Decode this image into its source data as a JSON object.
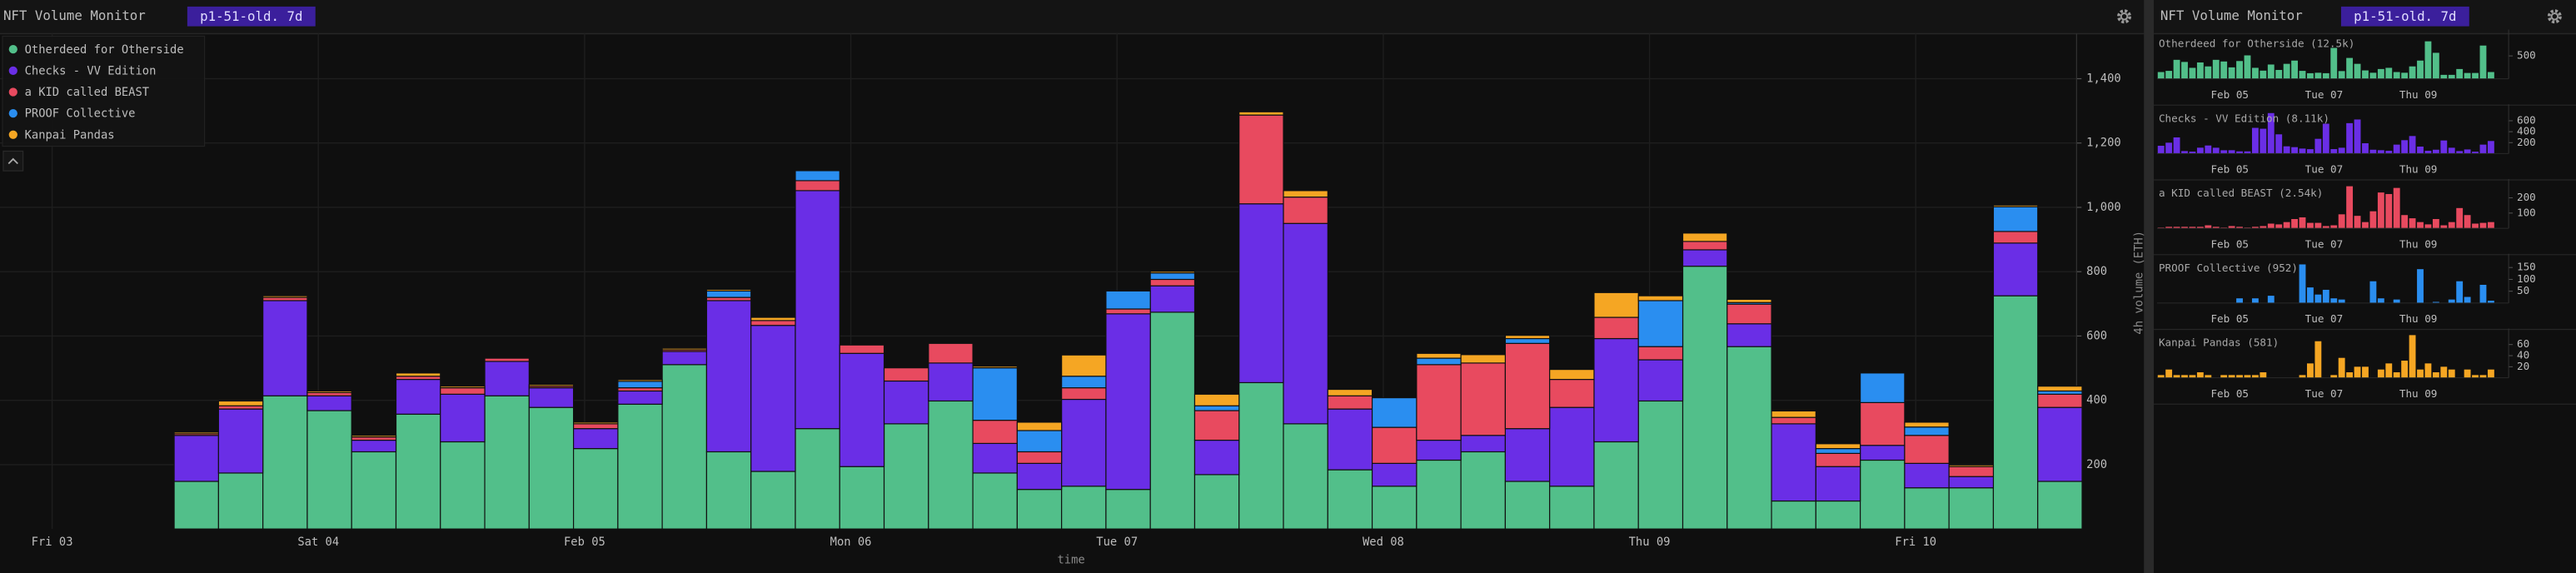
{
  "chart_data": {
    "type": "bar",
    "stacked": true,
    "title": "NFT Volume Monitor",
    "badge": "p1-51-old. 7d",
    "xlabel": "time",
    "ylabel": "4h volume (ETH)",
    "grid": true,
    "legend": "upper left",
    "x": [
      13,
      17,
      21,
      25,
      29,
      33,
      37,
      41,
      45,
      49,
      53,
      57,
      61,
      65,
      69,
      73,
      77,
      81,
      85,
      89,
      93,
      97,
      101,
      105,
      109,
      113,
      117,
      121,
      125,
      129,
      133,
      137,
      141,
      145,
      149,
      153,
      157,
      161,
      165,
      169,
      173,
      177,
      181
    ],
    "xlim": [
      -4.7,
      182.5
    ],
    "xticks": [
      {
        "value": 0,
        "label": "Fri 03"
      },
      {
        "value": 24,
        "label": "Sat 04"
      },
      {
        "value": 48,
        "label": "Feb 05"
      },
      {
        "value": 72,
        "label": "Mon 06"
      },
      {
        "value": 96,
        "label": "Tue 07"
      },
      {
        "value": 120,
        "label": "Wed 08"
      },
      {
        "value": 144,
        "label": "Thu 09"
      },
      {
        "value": 168,
        "label": "Fri 10"
      }
    ],
    "ylim": [
      0,
      1540
    ],
    "yticks": [
      200,
      400,
      600,
      800,
      {
        "value": 1000,
        "label": "1,000"
      },
      {
        "value": 1200,
        "label": "1,200"
      },
      {
        "value": 1400,
        "label": "1,400"
      }
    ],
    "panel_xlim": [
      11,
      190
    ],
    "panel_xticks": [
      {
        "value": 48,
        "label": "Feb 05"
      },
      {
        "value": 96,
        "label": "Tue 07"
      },
      {
        "value": 144,
        "label": "Thu 09"
      }
    ],
    "series": [
      {
        "name": "Otherdeed for Otherside",
        "color": "#52bf8a",
        "values": [
          148,
          174,
          414,
          368,
          240,
          357,
          271,
          414,
          378,
          250,
          388,
          511,
          240,
          179,
          312,
          194,
          327,
          398,
          174,
          123,
          133,
          123,
          674,
          169,
          455,
          327,
          184,
          133,
          214,
          240,
          148,
          133,
          271,
          398,
          817,
          567,
          87,
          87,
          214,
          128,
          128,
          725,
          148
        ],
        "panel": {
          "title": "Otherdeed for Otherside (12.5k)",
          "ylim": [
            0,
            930
          ],
          "yticks": [
            500
          ]
        }
      },
      {
        "name": "Checks - VV Edition",
        "color": "#6a2ee6",
        "values": [
          143,
          199,
          296,
          46,
          36,
          108,
          148,
          107,
          61,
          62,
          41,
          41,
          470,
          454,
          740,
          352,
          133,
          118,
          92,
          81,
          270,
          546,
          82,
          107,
          556,
          623,
          189,
          71,
          62,
          51,
          164,
          245,
          321,
          128,
          51,
          71,
          240,
          107,
          46,
          76,
          35,
          164,
          230
        ],
        "panel": {
          "title": "Checks - VV Edition (8.11k)",
          "ylim": [
            0,
            780
          ],
          "yticks": [
            200,
            400,
            600
          ]
        }
      },
      {
        "name": "a KID called BEAST",
        "color": "#e84a5f",
        "values": [
          5,
          10,
          10,
          10,
          10,
          10,
          20,
          10,
          5,
          15,
          10,
          5,
          10,
          15,
          31,
          26,
          41,
          61,
          72,
          36,
          36,
          15,
          20,
          92,
          276,
          82,
          41,
          112,
          235,
          225,
          265,
          87,
          66,
          41,
          26,
          61,
          20,
          41,
          133,
          87,
          31,
          36,
          41
        ],
        "panel": {
          "title": "a KID called BEAST (2.54k)",
          "ylim": [
            0,
            280
          ],
          "yticks": [
            100,
            200
          ]
        }
      },
      {
        "name": "PROOF Collective",
        "color": "#2a8ef0",
        "values": [
          0,
          0,
          0,
          0,
          0,
          0,
          0,
          0,
          0,
          0,
          20,
          0,
          20,
          0,
          31,
          0,
          0,
          0,
          163,
          66,
          36,
          56,
          20,
          15,
          0,
          0,
          0,
          92,
          20,
          0,
          15,
          0,
          0,
          143,
          0,
          5,
          0,
          15,
          92,
          26,
          0,
          77,
          10
        ],
        "panel": {
          "title": "PROOF Collective (952)",
          "ylim": [
            0,
            180
          ],
          "yticks": [
            50,
            100,
            150
          ]
        }
      },
      {
        "name": "Kanpai Pandas",
        "color": "#f5a623",
        "values": [
          5,
          15,
          5,
          5,
          5,
          10,
          5,
          0,
          5,
          5,
          5,
          5,
          5,
          10,
          0,
          0,
          0,
          0,
          5,
          26,
          66,
          0,
          5,
          36,
          10,
          20,
          20,
          0,
          15,
          26,
          10,
          31,
          77,
          15,
          26,
          10,
          20,
          15,
          0,
          15,
          5,
          5,
          15
        ],
        "panel": {
          "title": "Kanpai Pandas (581)",
          "ylim": [
            0,
            77
          ],
          "yticks": [
            20,
            40,
            60
          ]
        }
      }
    ]
  }
}
